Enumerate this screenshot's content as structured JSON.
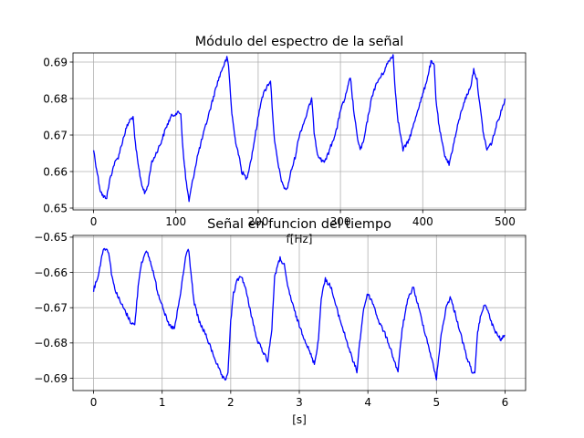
{
  "chart_data": [
    {
      "type": "line",
      "title": "Módulo del espectro de la señal",
      "xlabel": "f[Hz]",
      "ylabel": "",
      "xlim": [
        -25,
        525
      ],
      "ylim": [
        0.6495,
        0.6925
      ],
      "xticks": [
        0,
        100,
        200,
        300,
        400,
        500
      ],
      "xtick_labels": [
        "0",
        "100",
        "200",
        "300",
        "400",
        "500"
      ],
      "yticks": [
        0.65,
        0.66,
        0.67,
        0.68,
        0.69
      ],
      "ytick_labels": [
        "0.65",
        "0.66",
        "0.67",
        "0.68",
        "0.69"
      ],
      "grid": true,
      "color": "#0000ff",
      "series": [
        {
          "x": [
            0,
            2,
            8,
            12,
            16,
            20,
            25,
            30,
            36,
            40,
            44,
            48,
            50,
            54,
            58,
            62,
            66,
            70,
            76,
            82,
            88,
            94,
            100,
            106,
            108,
            112,
            116,
            120,
            126,
            132,
            138,
            144,
            150,
            156,
            162,
            164,
            168,
            172,
            176,
            180,
            186,
            192,
            198,
            204,
            210,
            215,
            217,
            220,
            225,
            230,
            235,
            240,
            245,
            250,
            258,
            265,
            268,
            272,
            277,
            282,
            290,
            296,
            300,
            304,
            308,
            312,
            316,
            320,
            324,
            328,
            332,
            336,
            340,
            346,
            352,
            358,
            364,
            366,
            370,
            376,
            382,
            388,
            394,
            400,
            406,
            410,
            414,
            416,
            420,
            426,
            432,
            438,
            444,
            450,
            458,
            462,
            466,
            470,
            474,
            478,
            484,
            490,
            496,
            500
          ],
          "y": [
            0.666,
            0.663,
            0.655,
            0.653,
            0.653,
            0.658,
            0.662,
            0.664,
            0.669,
            0.672,
            0.674,
            0.675,
            0.669,
            0.662,
            0.657,
            0.654,
            0.656,
            0.662,
            0.665,
            0.668,
            0.672,
            0.675,
            0.676,
            0.676,
            0.668,
            0.658,
            0.652,
            0.657,
            0.664,
            0.669,
            0.674,
            0.679,
            0.684,
            0.688,
            0.691,
            0.689,
            0.676,
            0.669,
            0.665,
            0.66,
            0.658,
            0.664,
            0.672,
            0.68,
            0.683,
            0.685,
            0.678,
            0.668,
            0.661,
            0.656,
            0.655,
            0.66,
            0.664,
            0.67,
            0.675,
            0.68,
            0.671,
            0.665,
            0.663,
            0.663,
            0.668,
            0.672,
            0.677,
            0.679,
            0.682,
            0.686,
            0.677,
            0.67,
            0.666,
            0.668,
            0.673,
            0.678,
            0.682,
            0.685,
            0.687,
            0.69,
            0.692,
            0.684,
            0.674,
            0.666,
            0.668,
            0.672,
            0.677,
            0.681,
            0.686,
            0.69,
            0.689,
            0.68,
            0.672,
            0.665,
            0.662,
            0.668,
            0.674,
            0.679,
            0.683,
            0.688,
            0.685,
            0.677,
            0.67,
            0.666,
            0.668,
            0.673,
            0.677,
            0.68
          ]
        }
      ]
    },
    {
      "type": "line",
      "title": "Señal en funcion del tiempo",
      "xlabel": "[s]",
      "ylabel": "",
      "xlim": [
        -0.3,
        6.3
      ],
      "ylim": [
        -0.6935,
        -0.6495
      ],
      "xticks": [
        0,
        1,
        2,
        3,
        4,
        5,
        6
      ],
      "xtick_labels": [
        "0",
        "1",
        "2",
        "3",
        "4",
        "5",
        "6"
      ],
      "yticks": [
        -0.65,
        -0.66,
        -0.67,
        -0.68,
        -0.69
      ],
      "ytick_labels": [
        "−0.65",
        "−0.66",
        "−0.67",
        "−0.68",
        "−0.69"
      ],
      "grid": true,
      "color": "#0000ff",
      "series": [
        {
          "x": [
            0,
            0.08,
            0.12,
            0.16,
            0.22,
            0.26,
            0.3,
            0.38,
            0.46,
            0.54,
            0.6,
            0.66,
            0.7,
            0.78,
            0.86,
            0.94,
            1.0,
            1.06,
            1.1,
            1.18,
            1.26,
            1.34,
            1.38,
            1.4,
            1.46,
            1.54,
            1.62,
            1.7,
            1.78,
            1.86,
            1.92,
            1.96,
            2.0,
            2.04,
            2.1,
            2.16,
            2.22,
            2.3,
            2.38,
            2.46,
            2.54,
            2.6,
            2.64,
            2.72,
            2.78,
            2.82,
            2.9,
            2.98,
            3.06,
            3.14,
            3.22,
            3.28,
            3.32,
            3.38,
            3.46,
            3.54,
            3.62,
            3.7,
            3.78,
            3.84,
            3.88,
            3.94,
            4.0,
            4.08,
            4.16,
            4.24,
            4.32,
            4.4,
            4.44,
            4.5,
            4.58,
            4.66,
            4.74,
            4.82,
            4.9,
            4.96,
            5.0,
            5.06,
            5.14,
            5.2,
            5.28,
            5.36,
            5.44,
            5.52,
            5.56,
            5.6,
            5.66,
            5.72,
            5.78,
            5.86,
            5.94,
            6.0
          ],
          "y": [
            -0.665,
            -0.66,
            -0.655,
            -0.653,
            -0.654,
            -0.66,
            -0.664,
            -0.668,
            -0.671,
            -0.674,
            -0.675,
            -0.662,
            -0.657,
            -0.654,
            -0.659,
            -0.666,
            -0.669,
            -0.673,
            -0.675,
            -0.676,
            -0.667,
            -0.656,
            -0.653,
            -0.656,
            -0.668,
            -0.674,
            -0.677,
            -0.681,
            -0.685,
            -0.689,
            -0.691,
            -0.688,
            -0.674,
            -0.666,
            -0.662,
            -0.661,
            -0.665,
            -0.672,
            -0.679,
            -0.682,
            -0.685,
            -0.676,
            -0.661,
            -0.656,
            -0.658,
            -0.663,
            -0.669,
            -0.674,
            -0.678,
            -0.682,
            -0.686,
            -0.679,
            -0.667,
            -0.662,
            -0.664,
            -0.67,
            -0.675,
            -0.68,
            -0.685,
            -0.688,
            -0.68,
            -0.67,
            -0.666,
            -0.669,
            -0.674,
            -0.677,
            -0.681,
            -0.686,
            -0.688,
            -0.676,
            -0.668,
            -0.664,
            -0.67,
            -0.676,
            -0.682,
            -0.687,
            -0.69,
            -0.679,
            -0.67,
            -0.667,
            -0.672,
            -0.678,
            -0.684,
            -0.688,
            -0.689,
            -0.677,
            -0.671,
            -0.669,
            -0.673,
            -0.677,
            -0.679,
            -0.678
          ]
        }
      ]
    }
  ]
}
